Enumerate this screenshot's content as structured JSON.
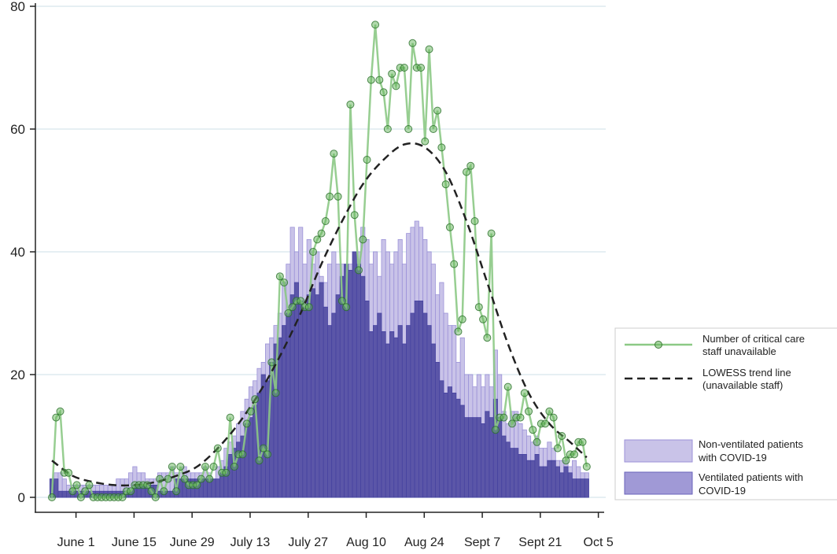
{
  "chart_data": {
    "type": "bar",
    "title": "",
    "xlabel": "",
    "ylabel": "",
    "ylim": [
      0,
      80
    ],
    "yticks": [
      0,
      20,
      40,
      60,
      80
    ],
    "grid": true,
    "start_date": "2021-05-26",
    "xticks": [
      {
        "label": "June 1",
        "day": 6
      },
      {
        "label": "June 15",
        "day": 20
      },
      {
        "label": "June 29",
        "day": 34
      },
      {
        "label": "July 13",
        "day": 48
      },
      {
        "label": "July 27",
        "day": 62
      },
      {
        "label": "Aug 10",
        "day": 76
      },
      {
        "label": "Aug 24",
        "day": 90
      },
      {
        "label": "Sept 7",
        "day": 104
      },
      {
        "label": "Sept 21",
        "day": 118
      },
      {
        "label": "Oct 5",
        "day": 132
      }
    ],
    "legend_placement": "right",
    "series": [
      {
        "name": "Number of critical care staff unavailable",
        "type": "line-markers",
        "color": "#8cc985",
        "values": [
          0,
          13,
          14,
          4,
          4,
          1,
          2,
          0,
          1,
          2,
          0,
          0,
          0,
          0,
          0,
          0,
          0,
          0,
          1,
          1,
          2,
          2,
          2,
          2,
          1,
          0,
          3,
          1,
          3,
          5,
          1,
          5,
          3,
          2,
          2,
          2,
          3,
          5,
          3,
          5,
          8,
          4,
          4,
          13,
          5,
          7,
          7,
          12,
          14,
          16,
          6,
          8,
          7,
          22,
          17,
          36,
          35,
          30,
          31,
          32,
          32,
          31,
          31,
          40,
          42,
          43,
          45,
          49,
          56,
          49,
          32,
          31,
          64,
          46,
          37,
          42,
          55,
          68,
          77,
          68,
          66,
          60,
          69,
          67,
          70,
          70,
          60,
          74,
          70,
          70,
          58,
          73,
          60,
          63,
          57,
          51,
          44,
          38,
          27,
          29,
          53,
          54,
          45,
          31,
          29,
          26,
          43,
          11,
          13,
          13,
          18,
          12,
          13,
          13,
          17,
          14,
          11,
          9,
          12,
          12,
          14,
          13,
          8,
          10,
          6,
          7,
          7,
          9,
          9,
          5
        ]
      },
      {
        "name": "LOWESS trend line (unavailable staff)",
        "type": "dashed-line",
        "color": "#222222",
        "sample_days": [
          0,
          5,
          10,
          15,
          20,
          25,
          30,
          35,
          40,
          45,
          50,
          55,
          60,
          65,
          70,
          75,
          80,
          85,
          90,
          95,
          100,
          105,
          110,
          115,
          120,
          125,
          129
        ],
        "values": [
          6,
          3.5,
          2.5,
          2,
          2,
          2.5,
          3.5,
          5,
          8,
          12,
          17,
          23,
          30,
          38,
          45,
          51,
          55,
          57.5,
          57,
          53,
          45,
          35,
          25,
          17,
          12,
          9,
          6.5
        ]
      },
      {
        "name": "Non-ventilated patients with COVID-19",
        "type": "stacked-total",
        "color": "#c9c3e8",
        "total_values": [
          3,
          4,
          4,
          3,
          2,
          2,
          2,
          2,
          2,
          2,
          2,
          2,
          2,
          2,
          2,
          2,
          3,
          3,
          3,
          4,
          5,
          4,
          4,
          3,
          3,
          3,
          4,
          4,
          4,
          5,
          4,
          4,
          5,
          4,
          4,
          4,
          4,
          5,
          4,
          3,
          5,
          6,
          8,
          9,
          10,
          12,
          14,
          16,
          18,
          19,
          21,
          22,
          25,
          26,
          28,
          30,
          35,
          38,
          44,
          40,
          44,
          38,
          42,
          38,
          40,
          36,
          35,
          38,
          40,
          38,
          38,
          36,
          38,
          40,
          40,
          44,
          42,
          38,
          40,
          36,
          42,
          40,
          38,
          40,
          42,
          38,
          43,
          44,
          45,
          44,
          42,
          40,
          38,
          33,
          35,
          30,
          28,
          28,
          22,
          26,
          20,
          20,
          18,
          20,
          18,
          20,
          18,
          24,
          20,
          14,
          12,
          14,
          14,
          12,
          11,
          10,
          9,
          10,
          8,
          8,
          9,
          8,
          6,
          6,
          6,
          5,
          6,
          5,
          4,
          4
        ]
      },
      {
        "name": "Ventilated patients with COVID-19",
        "type": "bar",
        "color": "#5b56a8",
        "values": [
          3,
          3,
          1,
          1,
          1,
          1,
          1,
          1,
          1,
          1,
          1,
          1,
          1,
          1,
          1,
          1,
          1,
          1,
          1,
          1,
          2,
          2,
          2,
          2,
          2,
          2,
          1,
          1,
          1,
          1,
          3,
          3,
          3,
          3,
          3,
          3,
          3,
          3,
          3,
          3,
          3,
          4,
          5,
          7,
          8,
          9,
          10,
          12,
          13,
          15,
          17,
          20,
          19,
          22,
          25,
          26,
          28,
          30,
          33,
          35,
          32,
          31,
          33,
          34,
          33,
          35,
          31,
          28,
          30,
          33,
          36,
          38,
          37,
          40,
          38,
          36,
          32,
          27,
          28,
          30,
          27,
          25,
          27,
          26,
          28,
          25,
          28,
          30,
          32,
          32,
          30,
          28,
          25,
          22,
          19,
          17,
          18,
          17,
          16,
          15,
          13,
          13,
          13,
          13,
          12,
          14,
          13,
          16,
          13,
          10,
          9,
          8,
          8,
          7,
          7,
          6,
          6,
          7,
          5,
          5,
          6,
          6,
          5,
          4,
          5,
          4,
          3,
          3,
          3,
          3
        ]
      }
    ],
    "legend": {
      "staff": [
        "Number of critical care",
        "staff unavailable"
      ],
      "lowess": [
        "LOWESS trend line",
        "(unavailable staff)"
      ],
      "nonvent": [
        "Non-ventilated patients",
        "with COVID-19"
      ],
      "vent": [
        "Ventilated patients with",
        "COVID-19"
      ]
    }
  }
}
